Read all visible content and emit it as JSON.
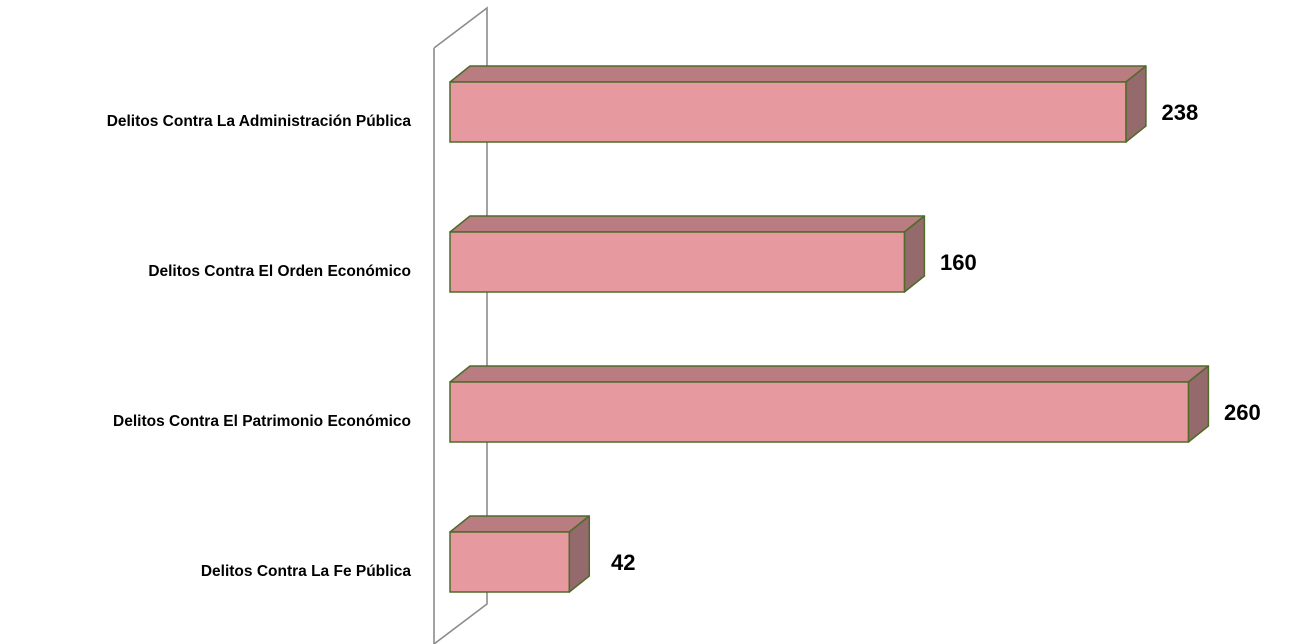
{
  "chart_data": {
    "type": "bar",
    "orientation": "horizontal",
    "style": "3d",
    "categories": [
      "Delitos Contra La Administración Pública",
      "Delitos Contra El Orden Económico",
      "Delitos Contra El Patrimonio Económico",
      "Delitos Contra La Fe Pública"
    ],
    "values": [
      238,
      160,
      260,
      42
    ],
    "data_labels": [
      "238",
      "160",
      "260",
      "42"
    ],
    "title": "",
    "xlabel": "",
    "ylabel": "",
    "xlim": [
      0,
      260
    ],
    "grid": false,
    "legend": "none"
  },
  "colors": {
    "bar_front": "#e6999f",
    "bar_top": "#b97c80",
    "bar_side": "#946a6d",
    "bar_edge": "#4f6b2a",
    "axis_wall": "#8c8c8c"
  }
}
